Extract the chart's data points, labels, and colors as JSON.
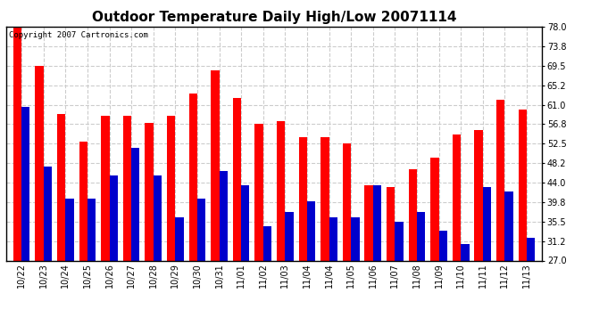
{
  "title": "Outdoor Temperature Daily High/Low 20071114",
  "copyright": "Copyright 2007 Cartronics.com",
  "categories": [
    "10/22",
    "10/23",
    "10/24",
    "10/25",
    "10/26",
    "10/27",
    "10/28",
    "10/29",
    "10/30",
    "10/31",
    "11/01",
    "11/02",
    "11/03",
    "11/04",
    "11/04",
    "11/05",
    "11/06",
    "11/07",
    "11/08",
    "11/09",
    "11/10",
    "11/11",
    "11/12",
    "11/13"
  ],
  "highs": [
    78.0,
    69.5,
    59.0,
    53.0,
    58.5,
    58.5,
    57.0,
    58.5,
    63.5,
    68.5,
    62.5,
    56.8,
    57.5,
    54.0,
    54.0,
    52.5,
    43.5,
    43.0,
    47.0,
    49.5,
    54.5,
    55.5,
    62.0,
    60.0
  ],
  "lows": [
    60.5,
    47.5,
    40.5,
    40.5,
    45.5,
    51.5,
    45.5,
    36.5,
    40.5,
    46.5,
    43.5,
    34.5,
    37.5,
    40.0,
    36.5,
    36.5,
    43.5,
    35.5,
    37.5,
    33.5,
    30.5,
    43.0,
    42.0,
    32.0
  ],
  "high_color": "#ff0000",
  "low_color": "#0000cc",
  "bg_color": "#ffffff",
  "grid_color": "#cccccc",
  "yticks": [
    27.0,
    31.2,
    35.5,
    39.8,
    44.0,
    48.2,
    52.5,
    56.8,
    61.0,
    65.2,
    69.5,
    73.8,
    78.0
  ],
  "ymin": 27.0,
  "ymax": 78.0,
  "bar_width": 0.38,
  "title_fontsize": 11,
  "tick_fontsize": 7,
  "copyright_fontsize": 6.5
}
